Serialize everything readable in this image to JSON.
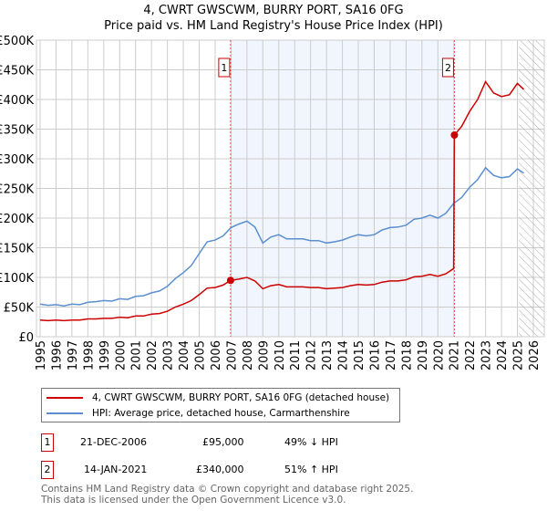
{
  "title": "4, CWRT GWSCWM, BURRY PORT, SA16 0FG",
  "subtitle": "Price paid vs. HM Land Registry's House Price Index (HPI)",
  "chart_data": {
    "type": "line",
    "xlim": [
      1995,
      2026
    ],
    "ylim": [
      0,
      500000
    ],
    "yticks": [
      {
        "v": 0,
        "label": "£0"
      },
      {
        "v": 50000,
        "label": "£50K"
      },
      {
        "v": 100000,
        "label": "£100K"
      },
      {
        "v": 150000,
        "label": "£150K"
      },
      {
        "v": 200000,
        "label": "£200K"
      },
      {
        "v": 250000,
        "label": "£250K"
      },
      {
        "v": 300000,
        "label": "£300K"
      },
      {
        "v": 350000,
        "label": "£350K"
      },
      {
        "v": 400000,
        "label": "£400K"
      },
      {
        "v": 450000,
        "label": "£450K"
      },
      {
        "v": 500000,
        "label": "£500K"
      }
    ],
    "xticks": [
      "1995",
      "1996",
      "1997",
      "1998",
      "1999",
      "2000",
      "2001",
      "2002",
      "2003",
      "2004",
      "2005",
      "2006",
      "2007",
      "2008",
      "2009",
      "2010",
      "2011",
      "2012",
      "2013",
      "2014",
      "2015",
      "2016",
      "2017",
      "2018",
      "2019",
      "2020",
      "2021",
      "2022",
      "2023",
      "2024",
      "2025",
      "2026"
    ],
    "grid": true,
    "shaded_range": [
      2006.97,
      2021.04
    ],
    "hatched_from": 2025.1,
    "series": [
      {
        "name": "4, CWRT GWSCWM, BURRY PORT, SA16 0FG (detached house)",
        "color": "#cc0000",
        "x": [
          1995,
          1995.5,
          1996,
          1996.5,
          1997,
          1997.5,
          1998,
          1998.5,
          1999,
          1999.5,
          2000,
          2000.5,
          2001,
          2001.5,
          2002,
          2002.5,
          2003,
          2003.5,
          2004,
          2004.5,
          2005,
          2005.5,
          2006,
          2006.5,
          2006.97,
          2007.5,
          2008,
          2008.5,
          2009,
          2009.5,
          2010,
          2010.5,
          2011,
          2011.5,
          2012,
          2012.5,
          2013,
          2013.5,
          2014,
          2014.5,
          2015,
          2015.5,
          2016,
          2016.5,
          2017,
          2017.5,
          2018,
          2018.5,
          2019,
          2019.5,
          2020,
          2020.5,
          2020.99,
          2021.04,
          2021.5,
          2022,
          2022.5,
          2023,
          2023.5,
          2024,
          2024.5,
          2025,
          2025.4
        ],
        "y": [
          28,
          27,
          28,
          27,
          28,
          28,
          30,
          30,
          31,
          31,
          33,
          32,
          35,
          35,
          38,
          39,
          43,
          50,
          55,
          61,
          71,
          82,
          83,
          87,
          95,
          97,
          100,
          94,
          81,
          86,
          88,
          84,
          84,
          84,
          83,
          83,
          81,
          82,
          83,
          86,
          88,
          87,
          88,
          92,
          94,
          94,
          96,
          101,
          102,
          105,
          102,
          106,
          115,
          340,
          355,
          380,
          400,
          430,
          411,
          405,
          408,
          427,
          417
        ]
      },
      {
        "name": "HPI: Average price, detached house, Carmarthenshire",
        "color": "#5b8fd0",
        "x": [
          1995,
          1995.5,
          1996,
          1996.5,
          1997,
          1997.5,
          1998,
          1998.5,
          1999,
          1999.5,
          2000,
          2000.5,
          2001,
          2001.5,
          2002,
          2002.5,
          2003,
          2003.5,
          2004,
          2004.5,
          2005,
          2005.5,
          2006,
          2006.5,
          2007,
          2007.5,
          2008,
          2008.5,
          2009,
          2009.5,
          2010,
          2010.5,
          2011,
          2011.5,
          2012,
          2012.5,
          2013,
          2013.5,
          2014,
          2014.5,
          2015,
          2015.5,
          2016,
          2016.5,
          2017,
          2017.5,
          2018,
          2018.5,
          2019,
          2019.5,
          2020,
          2020.5,
          2021,
          2021.5,
          2022,
          2022.5,
          2023,
          2023.5,
          2024,
          2024.5,
          2025,
          2025.4
        ],
        "y": [
          55,
          53,
          54,
          52,
          55,
          54,
          58,
          59,
          61,
          60,
          64,
          63,
          68,
          69,
          74,
          77,
          85,
          98,
          108,
          120,
          140,
          160,
          163,
          170,
          184,
          190,
          195,
          185,
          158,
          168,
          172,
          165,
          165,
          165,
          162,
          162,
          158,
          160,
          163,
          168,
          172,
          170,
          172,
          180,
          184,
          185,
          188,
          198,
          200,
          205,
          200,
          208,
          225,
          235,
          252,
          265,
          285,
          272,
          268,
          270,
          283,
          276
        ]
      }
    ],
    "y_units": "£ thousands in series values",
    "markers": [
      {
        "label": "1",
        "x": 2006.97,
        "y": 95
      },
      {
        "label": "2",
        "x": 2021.04,
        "y": 340
      }
    ]
  },
  "transactions": [
    {
      "num": "1",
      "date": "21-DEC-2006",
      "price": "£95,000",
      "hpi": "49% ↓ HPI"
    },
    {
      "num": "2",
      "date": "14-JAN-2021",
      "price": "£340,000",
      "hpi": "51% ↑ HPI"
    }
  ],
  "footer": [
    "Contains HM Land Registry data © Crown copyright and database right 2025.",
    "This data is licensed under the Open Government Licence v3.0."
  ]
}
